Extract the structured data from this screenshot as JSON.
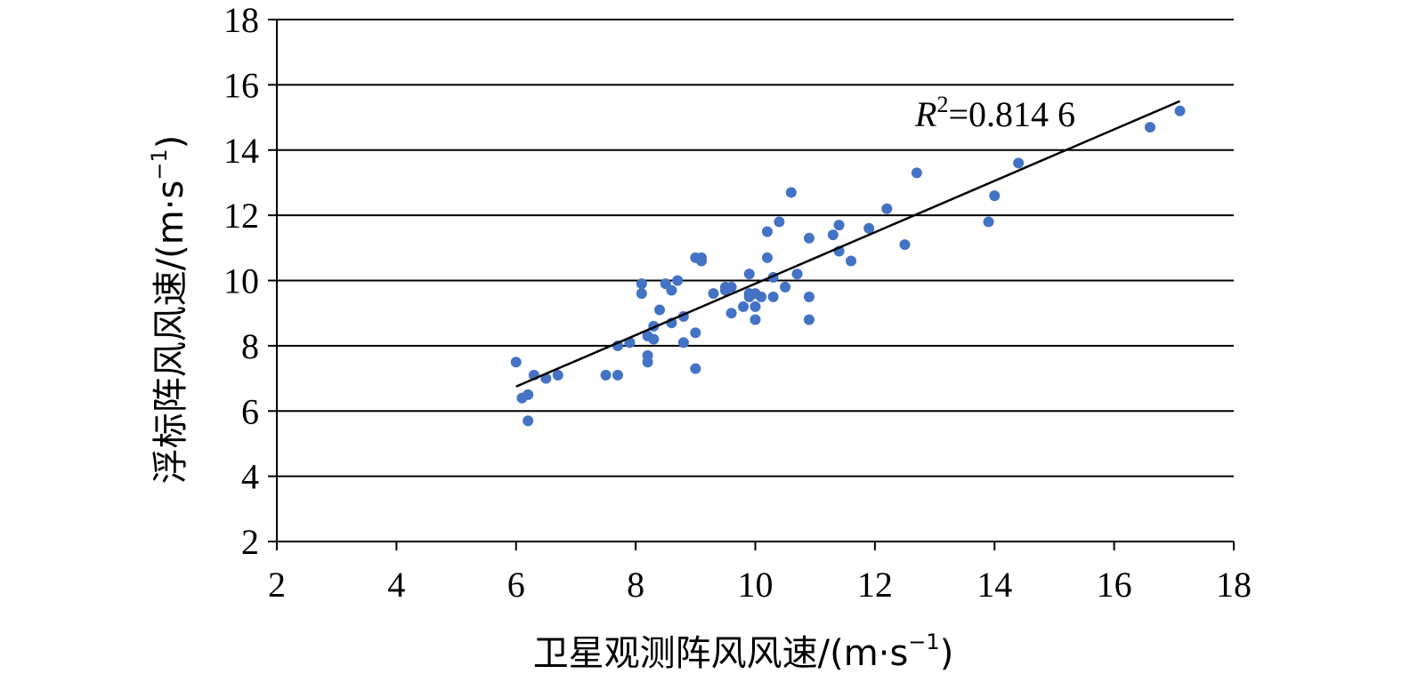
{
  "chart_data": {
    "type": "scatter",
    "title": "",
    "xlabel": "卫星观测阵风风速/(m·s",
    "xlabel_unit_exp": "−1",
    "xlabel_close": ")",
    "ylabel": "浮标阵风风速/(m·s",
    "ylabel_unit_exp": "−1",
    "ylabel_close": ")",
    "xlim": [
      2,
      18
    ],
    "ylim": [
      2,
      18
    ],
    "xticks": [
      "2",
      "4",
      "6",
      "8",
      "10",
      "12",
      "14",
      "16",
      "18"
    ],
    "yticks": [
      "2",
      "4",
      "6",
      "8",
      "10",
      "12",
      "14",
      "16",
      "18"
    ],
    "grid": "horizontal",
    "point_color": "#4472C4",
    "annotation": {
      "var": "R",
      "exp": "2",
      "rest": "=0.814 6"
    },
    "trendline": {
      "x": [
        6.0,
        17.1
      ],
      "y": [
        6.75,
        15.5
      ]
    },
    "points": [
      [
        6.0,
        7.5
      ],
      [
        6.1,
        6.4
      ],
      [
        6.2,
        6.5
      ],
      [
        6.2,
        5.7
      ],
      [
        6.3,
        7.1
      ],
      [
        6.5,
        7.0
      ],
      [
        6.7,
        7.1
      ],
      [
        7.5,
        7.1
      ],
      [
        7.7,
        7.1
      ],
      [
        7.7,
        8.0
      ],
      [
        7.9,
        8.1
      ],
      [
        8.1,
        9.9
      ],
      [
        8.1,
        9.6
      ],
      [
        8.2,
        8.3
      ],
      [
        8.2,
        7.7
      ],
      [
        8.2,
        7.5
      ],
      [
        8.3,
        8.6
      ],
      [
        8.3,
        8.2
      ],
      [
        8.4,
        9.1
      ],
      [
        8.5,
        9.9
      ],
      [
        8.6,
        9.7
      ],
      [
        8.6,
        8.7
      ],
      [
        8.7,
        10.0
      ],
      [
        8.8,
        8.9
      ],
      [
        8.8,
        8.1
      ],
      [
        9.0,
        10.7
      ],
      [
        9.0,
        8.4
      ],
      [
        9.0,
        7.3
      ],
      [
        9.1,
        10.7
      ],
      [
        9.1,
        10.6
      ],
      [
        9.3,
        9.6
      ],
      [
        9.5,
        9.8
      ],
      [
        9.5,
        9.7
      ],
      [
        9.6,
        9.8
      ],
      [
        9.6,
        9.0
      ],
      [
        9.8,
        9.2
      ],
      [
        9.9,
        10.2
      ],
      [
        9.9,
        9.6
      ],
      [
        9.9,
        9.5
      ],
      [
        10.0,
        9.6
      ],
      [
        10.0,
        9.2
      ],
      [
        10.0,
        8.8
      ],
      [
        10.1,
        9.5
      ],
      [
        10.2,
        11.5
      ],
      [
        10.2,
        10.7
      ],
      [
        10.3,
        10.1
      ],
      [
        10.3,
        9.5
      ],
      [
        10.4,
        11.8
      ],
      [
        10.5,
        9.8
      ],
      [
        10.6,
        12.7
      ],
      [
        10.7,
        10.2
      ],
      [
        10.9,
        11.3
      ],
      [
        10.9,
        9.5
      ],
      [
        10.9,
        8.8
      ],
      [
        11.3,
        11.4
      ],
      [
        11.4,
        11.7
      ],
      [
        11.4,
        10.9
      ],
      [
        11.6,
        10.6
      ],
      [
        11.9,
        11.6
      ],
      [
        12.2,
        12.2
      ],
      [
        12.5,
        11.1
      ],
      [
        12.7,
        13.3
      ],
      [
        13.9,
        11.8
      ],
      [
        14.0,
        12.6
      ],
      [
        14.4,
        13.6
      ],
      [
        16.6,
        14.7
      ],
      [
        17.1,
        15.2
      ]
    ]
  }
}
